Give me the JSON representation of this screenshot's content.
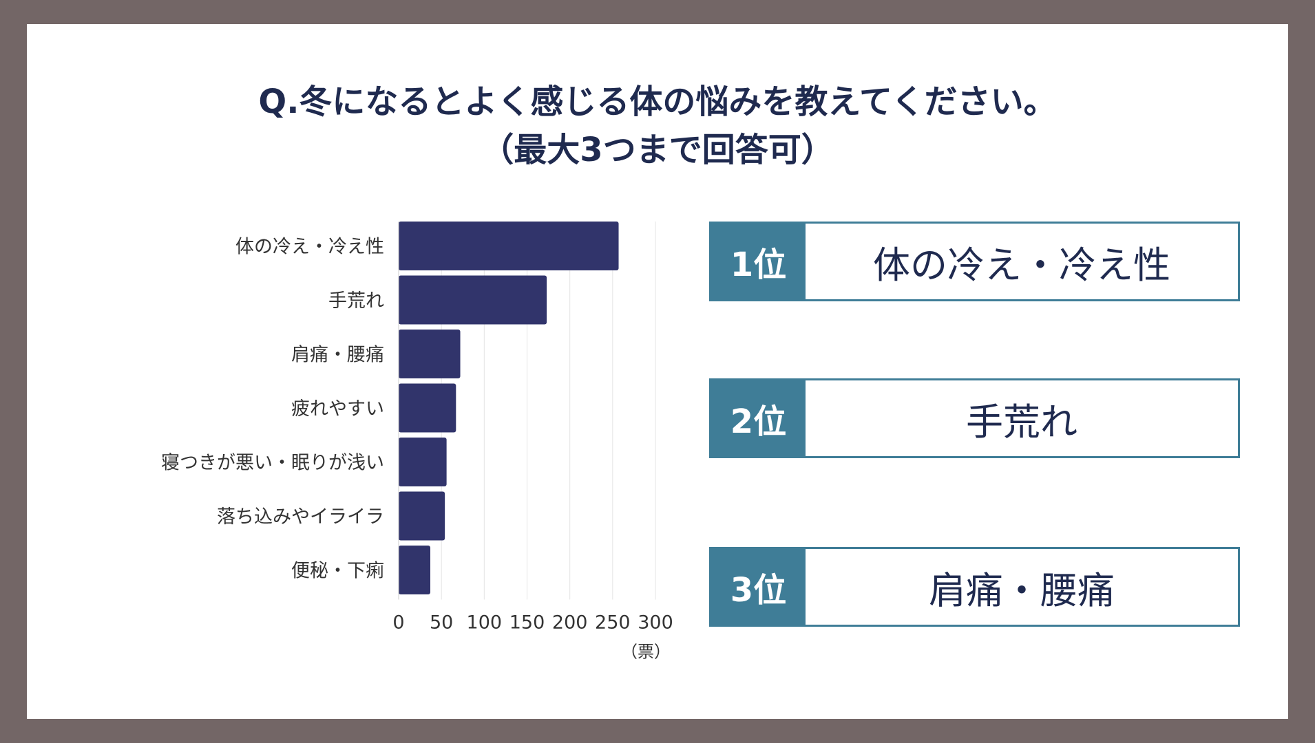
{
  "title": {
    "line1": "Q.冬になるとよく感じる体の悩みを教えてください。",
    "line2": "（最大3つまで回答可）"
  },
  "colors": {
    "bar": "#31346b",
    "grid": "#e4e4e4",
    "rank_accent": "#3f7d97",
    "title": "#1f2a4f",
    "frame": "#736666"
  },
  "chart_data": {
    "type": "bar",
    "orientation": "horizontal",
    "categories": [
      "体の冷え・冷え性",
      "手荒れ",
      "肩痛・腰痛",
      "疲れやすい",
      "寝つきが悪い・眠りが浅い",
      "落ち込みやイライラ",
      "便秘・下痢"
    ],
    "values": [
      257,
      173,
      72,
      67,
      56,
      54,
      37
    ],
    "xlim": [
      0,
      300
    ],
    "xticks": [
      0,
      50,
      100,
      150,
      200,
      250,
      300
    ],
    "xlabel": "（票）",
    "grid": true
  },
  "ranking": [
    {
      "label": "1位",
      "item": "体の冷え・冷え性"
    },
    {
      "label": "2位",
      "item": "手荒れ"
    },
    {
      "label": "3位",
      "item": "肩痛・腰痛"
    }
  ]
}
